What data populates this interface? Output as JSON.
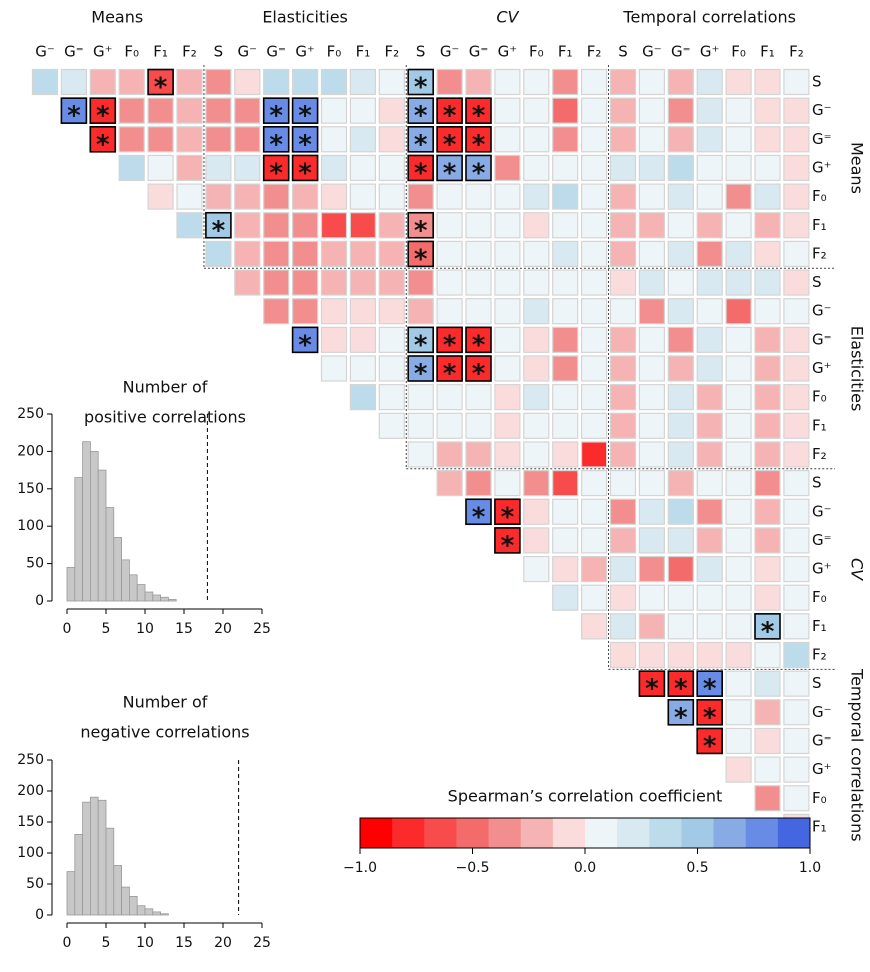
{
  "chart_data": [
    {
      "type": "heatmap",
      "col_group_labels": [
        "Means",
        "Elasticities",
        "CV",
        "Temporal correlations"
      ],
      "col_labels": [
        [
          "G⁻",
          "G⁼",
          "G⁺",
          "F₀",
          "F₁",
          "F₂"
        ],
        [
          "S",
          "G⁻",
          "G⁼",
          "G⁺",
          "F₀",
          "F₁",
          "F₂"
        ],
        [
          "S",
          "G⁻",
          "G⁼",
          "G⁺",
          "F₀",
          "F₁",
          "F₂"
        ],
        [
          "S",
          "G⁻",
          "G⁼",
          "G⁺",
          "F₀",
          "F₁",
          "F₂"
        ]
      ],
      "row_group_labels": [
        "Means",
        "Elasticities",
        "CV",
        "Temporal correlations"
      ],
      "row_labels": [
        [
          "S",
          "G⁻",
          "G⁼",
          "G⁺",
          "F₀",
          "F₁",
          "F₂"
        ],
        [
          "S",
          "G⁻",
          "G⁼",
          "G⁺",
          "F₀",
          "F₁",
          "F₂"
        ],
        [
          "S",
          "G⁻",
          "G⁼",
          "G⁺",
          "F₀",
          "F₁",
          "F₂"
        ],
        [
          "S",
          "G⁻",
          "G⁼",
          "G⁺",
          "F₀",
          "F₁"
        ]
      ],
      "values": [
        [
          0.3,
          0.25,
          -0.2,
          -0.2,
          -0.6,
          -0.2,
          -0.4,
          -0.1,
          0.3,
          0.3,
          0.35,
          0.2,
          0.1,
          0.5,
          -0.3,
          -0.2,
          0.05,
          0.05,
          -0.35,
          0.05,
          -0.2,
          0.05,
          -0.15,
          0.15,
          -0.1,
          -0.1,
          0.05
        ],
        [
          0.8,
          -0.8,
          -0.3,
          -0.3,
          -0.2,
          -0.4,
          -0.4,
          0.8,
          0.8,
          0.05,
          0.1,
          -0.1,
          0.7,
          -0.75,
          -0.75,
          0.1,
          0.05,
          -0.45,
          0.05,
          -0.15,
          0.05,
          -0.3,
          0.15,
          0.1,
          -0.1,
          -0.1
        ],
        [
          -0.8,
          -0.3,
          -0.3,
          -0.2,
          -0.4,
          -0.4,
          0.8,
          0.8,
          0.05,
          0.15,
          -0.1,
          0.7,
          -0.75,
          -0.75,
          0.1,
          0.05,
          -0.35,
          0.05,
          -0.2,
          0.05,
          -0.25,
          0.2,
          0.1,
          -0.1,
          -0.1
        ],
        [
          0.35,
          0.05,
          -0.2,
          0.2,
          0.2,
          -0.75,
          -0.75,
          0.2,
          0.1,
          0.05,
          -0.75,
          0.6,
          0.7,
          -0.3,
          0.05,
          0.05,
          0.05,
          0.2,
          0.2,
          0.35,
          0.1,
          0.05,
          0.1,
          -0.1
        ],
        [
          -0.1,
          0.05,
          -0.15,
          -0.2,
          -0.3,
          -0.2,
          -0.1,
          0.05,
          0.05,
          -0.4,
          0.05,
          0.05,
          0.1,
          0.2,
          0.3,
          0.05,
          -0.15,
          0.1,
          0.2,
          0.05,
          -0.4,
          0.15,
          -0.1
        ],
        [
          0.35,
          0.45,
          -0.25,
          -0.35,
          -0.3,
          -0.6,
          -0.6,
          -0.2,
          -0.3,
          0.05,
          0.05,
          0.05,
          -0.1,
          0.05,
          0.05,
          -0.15,
          -0.2,
          0.1,
          -0.15,
          0.1,
          -0.2,
          -0.1
        ],
        [
          0.3,
          -0.25,
          -0.4,
          -0.35,
          -0.2,
          -0.15,
          -0.2,
          -0.5,
          0.1,
          0.1,
          0.05,
          0.1,
          0.15,
          0.1,
          -0.15,
          0.1,
          0.25,
          -0.3,
          0.15,
          -0.1,
          0.05
        ],
        [
          -0.2,
          -0.4,
          -0.3,
          -0.2,
          -0.2,
          -0.2,
          -0.4,
          0.1,
          0.05,
          0.1,
          0.05,
          0.05,
          0.1,
          -0.1,
          0.2,
          0.1,
          0.15,
          0.15,
          0.15,
          -0.1
        ],
        [
          -0.4,
          -0.35,
          -0.1,
          -0.1,
          -0.1,
          -0.15,
          0.05,
          0.1,
          0.1,
          0.2,
          0.05,
          0.05,
          0.05,
          -0.35,
          0.15,
          0.1,
          -0.5,
          0.1,
          0.05
        ],
        [
          0.8,
          -0.05,
          -0.1,
          0.05,
          0.5,
          -0.75,
          -0.75,
          0.1,
          -0.1,
          -0.3,
          0.05,
          -0.15,
          0.1,
          -0.3,
          0.15,
          0.1,
          -0.15,
          -0.1
        ],
        [
          0.05,
          0.05,
          0.05,
          0.6,
          -0.75,
          -0.75,
          0.1,
          -0.1,
          -0.4,
          0.05,
          -0.2,
          0.1,
          -0.25,
          0.15,
          0.1,
          -0.15,
          -0.1
        ],
        [
          0.3,
          0.05,
          0.1,
          0.05,
          0.05,
          -0.1,
          0.2,
          0.05,
          0.05,
          -0.15,
          0.1,
          0.15,
          -0.15,
          0.1,
          -0.15,
          -0.1
        ],
        [
          0.05,
          0.05,
          0.05,
          0.05,
          -0.1,
          0.05,
          0.05,
          0.05,
          -0.15,
          0.1,
          0.15,
          -0.15,
          0.1,
          -0.15,
          -0.1
        ],
        [
          0.1,
          -0.2,
          -0.25,
          -0.1,
          0.05,
          -0.1,
          -0.75,
          -0.15,
          0.1,
          0.15,
          -0.15,
          0.05,
          -0.15,
          -0.1
        ],
        [
          -0.2,
          -0.4,
          0.05,
          -0.3,
          -0.6,
          0.05,
          0.05,
          0.1,
          -0.15,
          0.1,
          0.05,
          -0.35,
          0.05
        ],
        [
          0.8,
          -0.75,
          -0.1,
          0.05,
          0.05,
          -0.3,
          0.2,
          0.35,
          -0.3,
          0.1,
          -0.15,
          0.1
        ],
        [
          -0.8,
          -0.1,
          0.05,
          0.05,
          -0.2,
          0.2,
          0.25,
          -0.2,
          0.1,
          -0.15,
          0.1
        ],
        [
          0.05,
          -0.1,
          -0.15,
          0.25,
          -0.35,
          -0.45,
          0.2,
          0.05,
          -0.1,
          0.05
        ],
        [
          0.2,
          0.05,
          -0.1,
          0.05,
          0.05,
          0.05,
          0.05,
          -0.1,
          0.05
        ],
        [
          -0.1,
          0.2,
          -0.2,
          0.1,
          0.05,
          0.05,
          0.5,
          0.1
        ],
        [
          -0.1,
          -0.1,
          -0.1,
          -0.1,
          -0.1,
          0.05,
          0.3
        ],
        [
          -0.8,
          -0.8,
          0.8,
          0.05,
          0.2,
          0.05
        ],
        [
          0.6,
          -0.8,
          0.05,
          -0.15,
          0.05
        ],
        [
          -0.8,
          0.05,
          -0.1,
          0.05
        ],
        [
          -0.1,
          0.1,
          0.05
        ],
        [
          -0.3,
          0.05
        ],
        [
          -0.1
        ]
      ],
      "significance_symbol": "*",
      "significant_cells": [
        [
          0,
          4
        ],
        [
          0,
          13
        ],
        [
          1,
          1
        ],
        [
          1,
          2
        ],
        [
          1,
          8
        ],
        [
          1,
          9
        ],
        [
          1,
          13
        ],
        [
          1,
          14
        ],
        [
          1,
          15
        ],
        [
          2,
          2
        ],
        [
          2,
          8
        ],
        [
          2,
          9
        ],
        [
          2,
          13
        ],
        [
          2,
          14
        ],
        [
          2,
          15
        ],
        [
          3,
          8
        ],
        [
          3,
          9
        ],
        [
          3,
          13
        ],
        [
          3,
          14
        ],
        [
          3,
          15
        ],
        [
          5,
          6
        ],
        [
          5,
          13
        ],
        [
          6,
          13
        ],
        [
          9,
          9
        ],
        [
          9,
          13
        ],
        [
          9,
          14
        ],
        [
          9,
          15
        ],
        [
          10,
          13
        ],
        [
          10,
          14
        ],
        [
          10,
          15
        ],
        [
          15,
          15
        ],
        [
          15,
          16
        ],
        [
          16,
          16
        ],
        [
          19,
          25
        ],
        [
          21,
          21
        ],
        [
          21,
          22
        ],
        [
          21,
          23
        ],
        [
          22,
          22
        ],
        [
          22,
          23
        ],
        [
          23,
          23
        ]
      ],
      "colorbar": {
        "title": "Spearman’s correlation coefficient",
        "lim": [
          -1,
          1
        ],
        "ticks": [
          {
            "value": -1,
            "label": "−1.0"
          },
          {
            "value": -0.5,
            "label": "−0.5"
          },
          {
            "value": 0,
            "label": "0.0"
          },
          {
            "value": 0.5,
            "label": "0.5"
          },
          {
            "value": 1,
            "label": "1.0"
          }
        ],
        "colors": [
          "#ff0000",
          "#fb2b2b",
          "#f84b4b",
          "#f46b6b",
          "#f28e8e",
          "#f5b3b3",
          "#fbdcdc",
          "#eef5f8",
          "#d8e9f1",
          "#bcdcec",
          "#a2cae6",
          "#88abe6",
          "#688ce5",
          "#4466e0"
        ]
      }
    },
    {
      "type": "histogram",
      "title_lines": [
        "Number of",
        "positive correlations"
      ],
      "bins": [
        0,
        1,
        2,
        3,
        4,
        5,
        6,
        7,
        8,
        9,
        10,
        11,
        12,
        13,
        14
      ],
      "counts": [
        45,
        165,
        213,
        200,
        175,
        125,
        85,
        55,
        35,
        22,
        12,
        8,
        5,
        2
      ],
      "color": "#c8c8c8",
      "xlim": [
        0,
        25
      ],
      "xticks": [
        0,
        5,
        10,
        15,
        20,
        25
      ],
      "ylim": [
        0,
        250
      ],
      "yticks": [
        0,
        50,
        100,
        150,
        200,
        250
      ],
      "reference_line": 18
    },
    {
      "type": "histogram",
      "title_lines": [
        "Number of",
        "negative correlations"
      ],
      "bins": [
        0,
        1,
        2,
        3,
        4,
        5,
        6,
        7,
        8,
        9,
        10,
        11,
        12,
        13
      ],
      "counts": [
        70,
        130,
        182,
        190,
        185,
        140,
        80,
        45,
        30,
        15,
        10,
        5,
        2
      ],
      "color": "#c8c8c8",
      "xlim": [
        0,
        25
      ],
      "xticks": [
        0,
        5,
        10,
        15,
        20,
        25
      ],
      "ylim": [
        0,
        250
      ],
      "yticks": [
        0,
        50,
        100,
        150,
        200,
        250
      ],
      "reference_line": 22
    }
  ]
}
